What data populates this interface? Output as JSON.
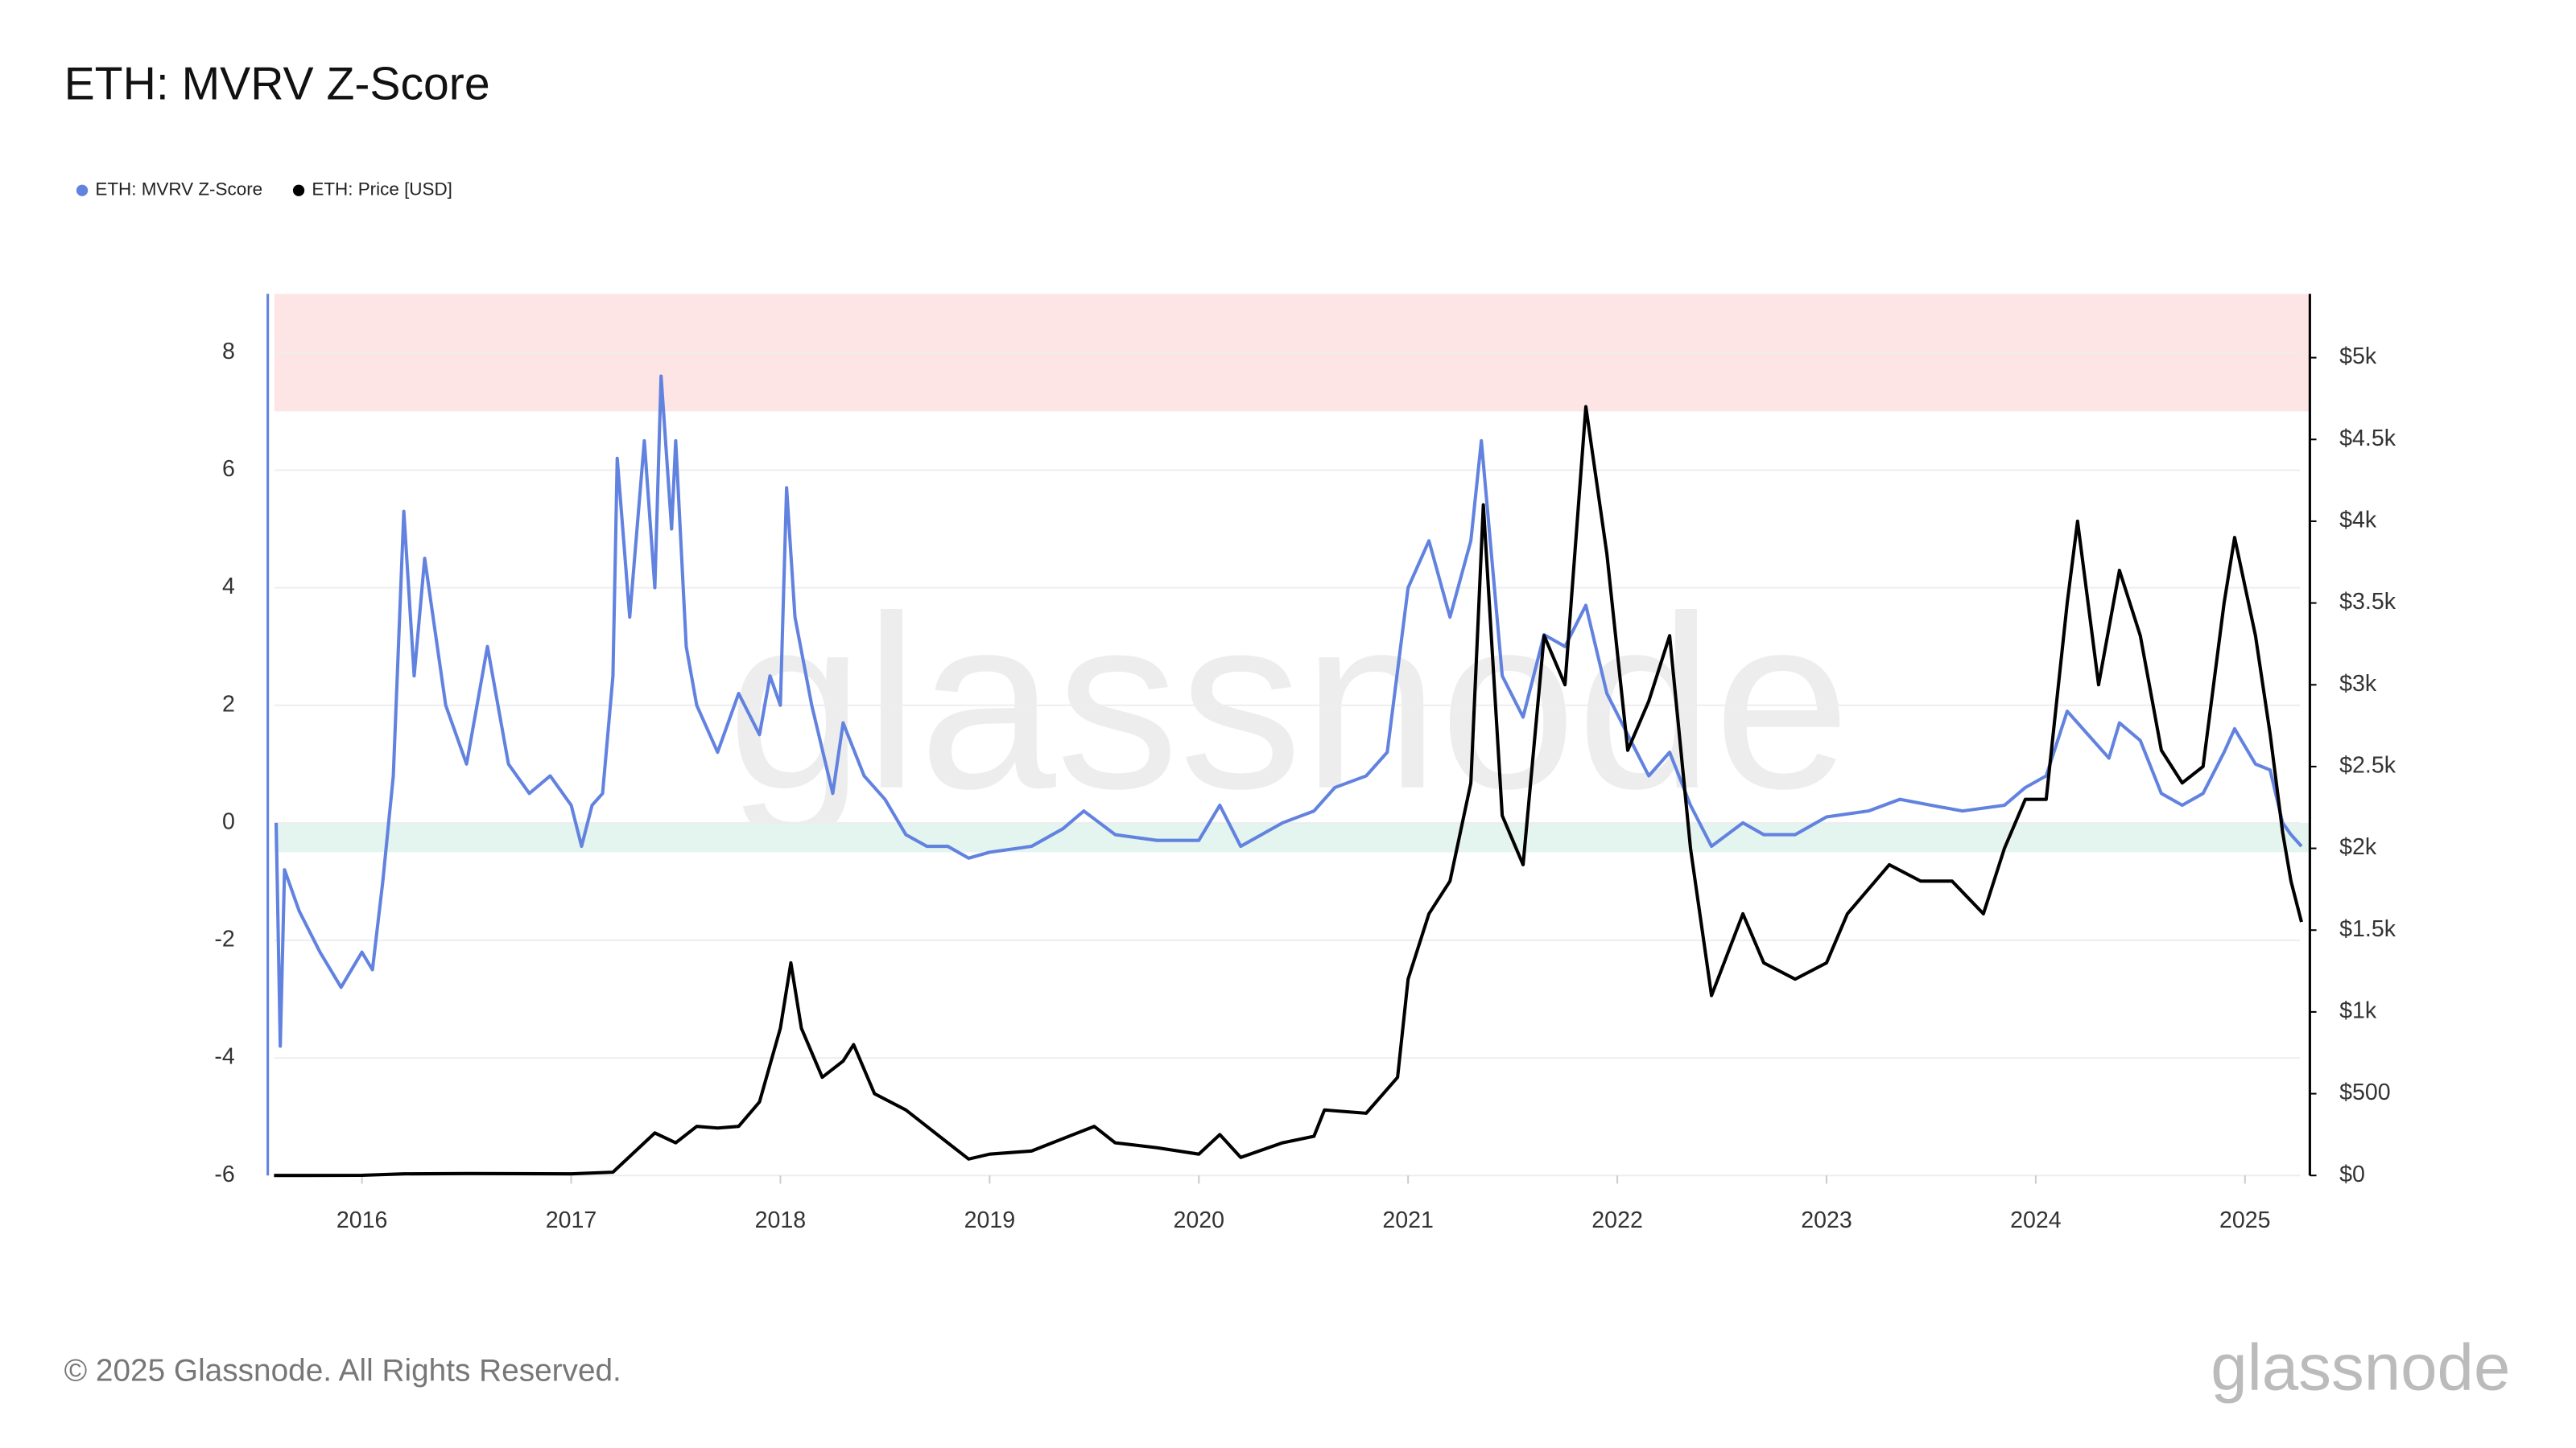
{
  "chart_data": {
    "type": "line",
    "title": "ETH: MVRV Z-Score",
    "footer": "© 2025 Glassnode. All Rights Reserved.",
    "brand": "glassnode",
    "watermark": "glassnode",
    "xlim": [
      2015.55,
      2025.31
    ],
    "xticks": [
      2016,
      2017,
      2018,
      2019,
      2020,
      2021,
      2022,
      2023,
      2024,
      2025
    ],
    "ylim": [
      -6,
      9
    ],
    "yticks": [
      -6,
      -4,
      -2,
      0,
      2,
      4,
      6,
      8
    ],
    "y2lim": [
      0,
      5390
    ],
    "y2ticks": [
      {
        "value": 0,
        "label": "$0"
      },
      {
        "value": 500,
        "label": "$500"
      },
      {
        "value": 1000,
        "label": "$1k"
      },
      {
        "value": 1500,
        "label": "$1.5k"
      },
      {
        "value": 2000,
        "label": "$2k"
      },
      {
        "value": 2500,
        "label": "$2.5k"
      },
      {
        "value": 3000,
        "label": "$3k"
      },
      {
        "value": 3500,
        "label": "$3.5k"
      },
      {
        "value": 4000,
        "label": "$4k"
      },
      {
        "value": 4500,
        "label": "$4.5k"
      },
      {
        "value": 5000,
        "label": "$5k"
      }
    ],
    "grid": true,
    "zones": [
      {
        "from": 7,
        "to": 9,
        "color": "#fde5e5"
      },
      {
        "from": -0.5,
        "to": 0,
        "color": "#e4f4ee"
      }
    ],
    "series": [
      {
        "name": "ETH: MVRV Z-Score",
        "color": "#6282e0",
        "axis": "y",
        "x": [
          2015.59,
          2015.61,
          2015.63,
          2015.7,
          2015.8,
          2015.9,
          2016.0,
          2016.05,
          2016.1,
          2016.15,
          2016.2,
          2016.25,
          2016.3,
          2016.4,
          2016.5,
          2016.6,
          2016.7,
          2016.8,
          2016.9,
          2017.0,
          2017.05,
          2017.1,
          2017.15,
          2017.2,
          2017.22,
          2017.28,
          2017.35,
          2017.4,
          2017.43,
          2017.48,
          2017.5,
          2017.55,
          2017.6,
          2017.7,
          2017.8,
          2017.9,
          2017.95,
          2018.0,
          2018.03,
          2018.07,
          2018.15,
          2018.25,
          2018.3,
          2018.4,
          2018.5,
          2018.6,
          2018.7,
          2018.8,
          2018.9,
          2019.0,
          2019.2,
          2019.35,
          2019.45,
          2019.6,
          2019.8,
          2020.0,
          2020.1,
          2020.2,
          2020.4,
          2020.55,
          2020.65,
          2020.8,
          2020.9,
          2021.0,
          2021.1,
          2021.2,
          2021.3,
          2021.35,
          2021.45,
          2021.55,
          2021.65,
          2021.75,
          2021.85,
          2021.95,
          2022.05,
          2022.15,
          2022.25,
          2022.35,
          2022.45,
          2022.6,
          2022.7,
          2022.85,
          2023.0,
          2023.2,
          2023.35,
          2023.5,
          2023.65,
          2023.85,
          2023.95,
          2024.05,
          2024.15,
          2024.25,
          2024.35,
          2024.4,
          2024.5,
          2024.6,
          2024.7,
          2024.8,
          2024.9,
          2024.95,
          2025.05,
          2025.12,
          2025.18,
          2025.22,
          2025.27
        ],
        "values": [
          0,
          -3.8,
          -0.8,
          -1.5,
          -2.2,
          -2.8,
          -2.2,
          -2.5,
          -1,
          0.8,
          5.3,
          2.5,
          4.5,
          2,
          1,
          3,
          1,
          0.5,
          0.8,
          0.3,
          -0.4,
          0.3,
          0.5,
          2.5,
          6.2,
          3.5,
          6.5,
          4,
          7.6,
          5,
          6.5,
          3,
          2,
          1.2,
          2.2,
          1.5,
          2.5,
          2,
          5.7,
          3.5,
          2,
          0.5,
          1.7,
          0.8,
          0.4,
          -0.2,
          -0.4,
          -0.4,
          -0.6,
          -0.5,
          -0.4,
          -0.1,
          0.2,
          -0.2,
          -0.3,
          -0.3,
          0.3,
          -0.4,
          0,
          0.2,
          0.6,
          0.8,
          1.2,
          4,
          4.8,
          3.5,
          4.8,
          6.5,
          2.5,
          1.8,
          3.2,
          3,
          3.7,
          2.2,
          1.5,
          0.8,
          1.2,
          0.3,
          -0.4,
          0,
          -0.2,
          -0.2,
          0.1,
          0.2,
          0.4,
          0.3,
          0.2,
          0.3,
          0.6,
          0.8,
          1.9,
          1.5,
          1.1,
          1.7,
          1.4,
          0.5,
          0.3,
          0.5,
          1.2,
          1.6,
          1,
          0.9,
          0,
          -0.2,
          -0.4
        ]
      },
      {
        "name": "ETH: Price [USD]",
        "color": "#000000",
        "axis": "y2",
        "x": [
          2015.58,
          2016.0,
          2016.2,
          2016.5,
          2017.0,
          2017.2,
          2017.4,
          2017.5,
          2017.6,
          2017.7,
          2017.8,
          2017.9,
          2018.0,
          2018.05,
          2018.1,
          2018.2,
          2018.3,
          2018.35,
          2018.45,
          2018.6,
          2018.8,
          2018.9,
          2019.0,
          2019.2,
          2019.4,
          2019.5,
          2019.6,
          2019.8,
          2020.0,
          2020.1,
          2020.2,
          2020.4,
          2020.55,
          2020.6,
          2020.8,
          2020.95,
          2021.0,
          2021.1,
          2021.2,
          2021.3,
          2021.36,
          2021.45,
          2021.55,
          2021.65,
          2021.75,
          2021.85,
          2021.95,
          2022.05,
          2022.15,
          2022.25,
          2022.35,
          2022.45,
          2022.6,
          2022.7,
          2022.85,
          2023.0,
          2023.1,
          2023.3,
          2023.45,
          2023.6,
          2023.75,
          2023.85,
          2023.95,
          2024.05,
          2024.15,
          2024.2,
          2024.3,
          2024.4,
          2024.5,
          2024.6,
          2024.7,
          2024.8,
          2024.9,
          2024.95,
          2025.05,
          2025.12,
          2025.18,
          2025.22,
          2025.27
        ],
        "values": [
          0,
          1,
          10,
          12,
          10,
          20,
          260,
          200,
          300,
          290,
          300,
          450,
          900,
          1300,
          900,
          600,
          700,
          800,
          500,
          400,
          200,
          100,
          130,
          150,
          250,
          300,
          200,
          170,
          130,
          250,
          110,
          200,
          240,
          400,
          380,
          600,
          1200,
          1600,
          1800,
          2400,
          4100,
          2200,
          1900,
          3300,
          3000,
          4700,
          3800,
          2600,
          2900,
          3300,
          2000,
          1100,
          1600,
          1300,
          1200,
          1300,
          1600,
          1900,
          1800,
          1800,
          1600,
          2000,
          2300,
          2300,
          3500,
          4000,
          3000,
          3700,
          3300,
          2600,
          2400,
          2500,
          3500,
          3900,
          3300,
          2700,
          2100,
          1800,
          1550
        ]
      }
    ]
  }
}
